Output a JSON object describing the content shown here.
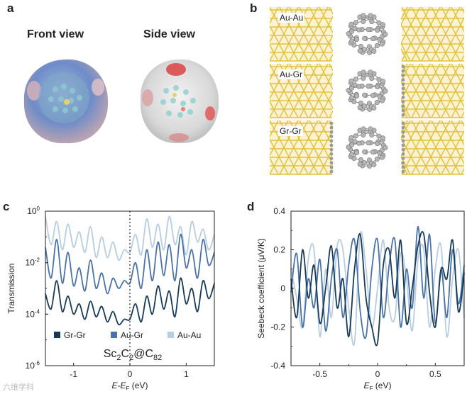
{
  "panels": {
    "a": {
      "label": "a",
      "front_view": "Front view",
      "side_view": "Side view"
    },
    "b": {
      "label": "b",
      "junctions": [
        "Au-Au",
        "Au-Gr",
        "Gr-Gr"
      ]
    },
    "c": {
      "label": "c"
    },
    "d": {
      "label": "d"
    }
  },
  "colors": {
    "gold": "#e3c13b",
    "gr_gr": "#163a57",
    "au_gr": "#4a72a8",
    "au_au": "#b6cde2"
  },
  "watermark": "六维学科",
  "chart_data": [
    {
      "type": "line",
      "panel": "c",
      "ylabel": "Transmission",
      "xlabel": "E-E",
      "xlabel_sub": "F",
      "xlabel_unit": " (eV)",
      "yscale": "log",
      "xlim": [
        -1.5,
        1.5
      ],
      "ylim_exp": [
        -6,
        0
      ],
      "xticks": [
        "-1",
        "0",
        "1"
      ],
      "yticks_base": "10",
      "yticks_exp": [
        "0",
        "-2",
        "-4",
        "-6"
      ],
      "molecule": {
        "a": "Sc",
        "a_sub": "2",
        "b": "C",
        "b_sub": "2",
        "at": "@C",
        "c_sub": "82"
      },
      "legend": [
        "Gr-Gr",
        "Au-Gr",
        "Au-Au"
      ],
      "series": [
        {
          "name": "Gr-Gr",
          "x": [
            -1.5,
            -1.4,
            -1.3,
            -1.2,
            -1.1,
            -1.0,
            -0.9,
            -0.8,
            -0.7,
            -0.6,
            -0.5,
            -0.4,
            -0.3,
            -0.2,
            -0.1,
            0.0,
            0.1,
            0.2,
            0.3,
            0.4,
            0.5,
            0.6,
            0.7,
            0.8,
            0.9,
            1.0,
            1.1,
            1.2,
            1.3,
            1.4,
            1.5
          ],
          "log10_y": [
            -3.2,
            -3.8,
            -2.7,
            -3.9,
            -3.3,
            -4.0,
            -3.6,
            -4.2,
            -3.5,
            -4.1,
            -3.7,
            -4.3,
            -3.9,
            -4.4,
            -4.2,
            -4.2,
            -3.6,
            -4.3,
            -3.3,
            -4.0,
            -2.9,
            -3.8,
            -3.1,
            -4.1,
            -2.6,
            -3.6,
            -3.0,
            -3.9,
            -2.7,
            -3.4,
            -2.8
          ]
        },
        {
          "name": "Au-Gr",
          "x": [
            -1.5,
            -1.4,
            -1.3,
            -1.2,
            -1.1,
            -1.0,
            -0.9,
            -0.8,
            -0.7,
            -0.6,
            -0.5,
            -0.4,
            -0.3,
            -0.2,
            -0.1,
            0.0,
            0.1,
            0.2,
            0.3,
            0.4,
            0.5,
            0.6,
            0.7,
            0.8,
            0.9,
            1.0,
            1.1,
            1.2,
            1.3,
            1.4,
            1.5
          ],
          "log10_y": [
            -1.4,
            -2.6,
            -1.1,
            -2.8,
            -1.6,
            -2.9,
            -2.2,
            -3.1,
            -1.9,
            -3.0,
            -2.4,
            -3.2,
            -2.6,
            -3.0,
            -2.7,
            -2.8,
            -2.0,
            -3.0,
            -1.5,
            -2.7,
            -1.2,
            -2.5,
            -1.3,
            -2.7,
            -0.9,
            -2.2,
            -1.5,
            -2.6,
            -1.1,
            -2.1,
            -1.6
          ]
        },
        {
          "name": "Au-Au",
          "x": [
            -1.5,
            -1.4,
            -1.3,
            -1.2,
            -1.1,
            -1.0,
            -0.9,
            -0.8,
            -0.7,
            -0.6,
            -0.5,
            -0.4,
            -0.3,
            -0.2,
            -0.1,
            0.0,
            0.1,
            0.2,
            0.3,
            0.4,
            0.5,
            0.6,
            0.7,
            0.8,
            0.9,
            1.0,
            1.1,
            1.2,
            1.3,
            1.4,
            1.5
          ],
          "log10_y": [
            -0.2,
            -1.3,
            -0.4,
            -1.5,
            -0.5,
            -1.4,
            -0.8,
            -1.6,
            -0.6,
            -1.8,
            -1.0,
            -1.8,
            -1.2,
            -1.9,
            -1.5,
            -1.6,
            -0.9,
            -1.7,
            -0.3,
            -1.4,
            -0.5,
            -1.5,
            -0.2,
            -1.3,
            -0.6,
            -1.7,
            -0.4,
            -1.2,
            -0.7,
            -1.5,
            -0.9
          ]
        }
      ]
    },
    {
      "type": "line",
      "panel": "d",
      "ylabel": "Seebeck coefficient (μV/K)",
      "xlabel": "E",
      "xlabel_sub": "F",
      "xlabel_unit": " (eV)",
      "xlim": [
        -0.75,
        0.75
      ],
      "ylim": [
        -0.4,
        0.4
      ],
      "xticks": [
        "-0.5",
        "0",
        "0.5"
      ],
      "yticks": [
        "0.4",
        "0.2",
        "0",
        "-0.2",
        "-0.4"
      ],
      "series": [
        {
          "name": "Gr-Gr",
          "x": [
            -0.75,
            -0.7,
            -0.65,
            -0.6,
            -0.55,
            -0.5,
            -0.45,
            -0.4,
            -0.35,
            -0.3,
            -0.25,
            -0.2,
            -0.15,
            -0.1,
            -0.05,
            0.0,
            0.05,
            0.1,
            0.15,
            0.2,
            0.25,
            0.3,
            0.35,
            0.4,
            0.45,
            0.5,
            0.55,
            0.6,
            0.65,
            0.7,
            0.75
          ],
          "values": [
            0.05,
            -0.15,
            0.2,
            -0.05,
            0.12,
            -0.18,
            0.0,
            0.22,
            -0.1,
            0.05,
            -0.25,
            0.1,
            0.28,
            -0.05,
            -0.2,
            -0.28,
            0.12,
            0.2,
            -0.05,
            0.25,
            -0.18,
            0.0,
            0.22,
            0.28,
            -0.02,
            -0.2,
            0.1,
            0.05,
            0.25,
            -0.12,
            0.08
          ]
        },
        {
          "name": "Au-Gr",
          "x": [
            -0.75,
            -0.7,
            -0.65,
            -0.6,
            -0.55,
            -0.5,
            -0.45,
            -0.4,
            -0.35,
            -0.3,
            -0.25,
            -0.2,
            -0.15,
            -0.1,
            -0.05,
            0.0,
            0.05,
            0.1,
            0.15,
            0.2,
            0.25,
            0.3,
            0.35,
            0.4,
            0.45,
            0.5,
            0.55,
            0.6,
            0.65,
            0.7,
            0.75
          ],
          "values": [
            -0.02,
            0.18,
            -0.2,
            0.05,
            -0.1,
            0.15,
            -0.22,
            0.05,
            0.2,
            -0.15,
            0.12,
            0.25,
            -0.12,
            -0.25,
            0.1,
            0.25,
            -0.15,
            0.12,
            0.25,
            -0.2,
            0.1,
            -0.1,
            0.32,
            -0.05,
            0.28,
            -0.18,
            0.1,
            -0.15,
            0.2,
            -0.08,
            0.12
          ]
        },
        {
          "name": "Au-Au",
          "x": [
            -0.75,
            -0.7,
            -0.65,
            -0.6,
            -0.55,
            -0.5,
            -0.45,
            -0.4,
            -0.35,
            -0.3,
            -0.25,
            -0.2,
            -0.15,
            -0.1,
            -0.05,
            0.0,
            0.05,
            0.1,
            0.15,
            0.2,
            0.25,
            0.3,
            0.35,
            0.4,
            0.45,
            0.5,
            0.55,
            0.6,
            0.65,
            0.7,
            0.75
          ],
          "values": [
            0.1,
            -0.05,
            -0.2,
            0.15,
            0.2,
            -0.25,
            0.1,
            -0.15,
            0.22,
            0.2,
            -0.1,
            -0.28,
            0.28,
            0.1,
            -0.2,
            0.0,
            0.25,
            -0.1,
            -0.15,
            0.18,
            0.05,
            -0.22,
            0.15,
            0.2,
            -0.2,
            0.1,
            0.22,
            -0.25,
            0.05,
            0.2,
            -0.15
          ]
        }
      ]
    }
  ]
}
